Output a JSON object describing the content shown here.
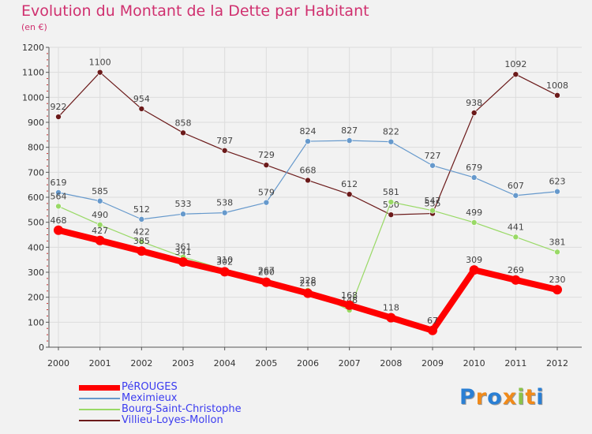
{
  "chart_data": {
    "type": "line",
    "title": "Evolution du Montant de la Dette par Habitant",
    "subtitle": "(en €)",
    "x": [
      "2000",
      "2001",
      "2002",
      "2003",
      "2004",
      "2005",
      "2006",
      "2007",
      "2008",
      "2009",
      "2010",
      "2011",
      "2012"
    ],
    "ylim": [
      0,
      1200
    ],
    "yticks": [
      "0",
      "100",
      "200",
      "300",
      "400",
      "500",
      "600",
      "700",
      "800",
      "900",
      "1000",
      "1100",
      "1200"
    ],
    "grid": true,
    "series": [
      {
        "name": "Villieu-Loyes-Mollon",
        "color": "#6b1a1a",
        "values": [
          922,
          1100,
          954,
          858,
          787,
          729,
          668,
          612,
          530,
          535,
          938,
          1092,
          1008
        ],
        "labels": [
          "922",
          "1100",
          "954",
          "858",
          "787",
          "729",
          "668",
          "612",
          "530",
          "535",
          "938",
          "1092",
          "1008"
        ]
      },
      {
        "name": "Meximieux",
        "color": "#6699cc",
        "values": [
          619,
          585,
          512,
          533,
          538,
          579,
          824,
          827,
          822,
          727,
          679,
          607,
          623
        ],
        "labels": [
          "619",
          "585",
          "512",
          "533",
          "538",
          "579",
          "824",
          "827",
          "822",
          "727",
          "679",
          "607",
          "623"
        ]
      },
      {
        "name": "Bourg-Saint-Christophe",
        "color": "#99d966",
        "values": [
          564,
          490,
          422,
          361,
          310,
          267,
          228,
          148,
          581,
          547,
          499,
          441,
          381
        ],
        "labels": [
          "564",
          "490",
          "422",
          "361",
          "310",
          "267",
          "228",
          "148",
          "581",
          "547",
          "499",
          "441",
          "381"
        ]
      },
      {
        "name": "PéROUGES",
        "color": "#ff0000",
        "values": [
          468,
          427,
          385,
          341,
          302,
          260,
          216,
          168,
          118,
          67,
          309,
          269,
          230
        ],
        "labels": [
          "468",
          "427",
          "385",
          "341",
          "302",
          "260",
          "216",
          "168",
          "118",
          "67",
          "309",
          "269",
          "230"
        ]
      }
    ]
  },
  "legend": {
    "items": [
      {
        "label": "PéROUGES",
        "color": "#ff0000"
      },
      {
        "label": "Meximieux",
        "color": "#6699cc"
      },
      {
        "label": "Bourg-Saint-Christophe",
        "color": "#99d966"
      },
      {
        "label": "Villieu-Loyes-Mollon",
        "color": "#6b1a1a"
      }
    ]
  },
  "logo": {
    "letters": [
      "P",
      "r",
      "o",
      "x",
      "i",
      "t",
      "i"
    ],
    "colors": [
      "#2a7fd4",
      "#f08a1a",
      "#2a7fd4",
      "#f08a1a",
      "#8bc34a",
      "#f08a1a",
      "#2a7fd4"
    ]
  }
}
